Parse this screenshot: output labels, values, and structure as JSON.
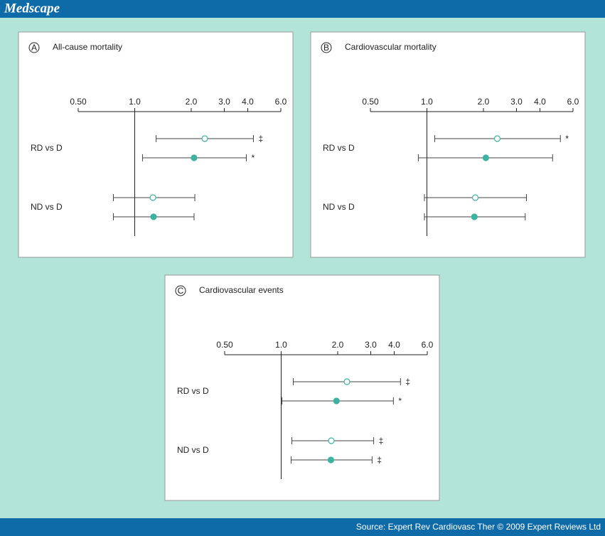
{
  "header": {
    "title": "Medscape"
  },
  "footer": {
    "source": "Source: Expert Rev Cardiovasc Ther © 2009 Expert Reviews Ltd"
  },
  "chart_data": [
    {
      "type": "forest",
      "panel_label": "A",
      "title": "All-cause mortality",
      "xscale": "log",
      "reference": 1,
      "xlim": [
        0.5,
        6
      ],
      "xticks": [
        {
          "value": 0.5,
          "label": "0.50"
        },
        {
          "value": 1,
          "label": "1.0"
        },
        {
          "value": 2,
          "label": "2.0"
        },
        {
          "value": 3,
          "label": "3.0"
        },
        {
          "value": 4,
          "label": "4.0"
        },
        {
          "value": 6,
          "label": "6.0"
        }
      ],
      "categories": [
        "RD vs D",
        "ND vs D"
      ],
      "series": [
        {
          "marker": "open",
          "color": "#3bb3a0",
          "values": [
            2.36,
            1.25
          ],
          "lower": [
            1.3,
            0.77
          ],
          "upper": [
            4.29,
            2.09
          ],
          "annotations": [
            "‡",
            null
          ]
        },
        {
          "marker": "filled",
          "color": "#3bb3a0",
          "values": [
            2.07,
            1.26
          ],
          "lower": [
            1.1,
            0.77
          ],
          "upper": [
            3.93,
            2.07
          ],
          "annotations": [
            "*",
            null
          ]
        }
      ]
    },
    {
      "type": "forest",
      "panel_label": "B",
      "title": "Cardiovascular mortality",
      "xscale": "log",
      "reference": 1,
      "xlim": [
        0.5,
        6
      ],
      "xticks": [
        {
          "value": 0.5,
          "label": "0.50"
        },
        {
          "value": 1,
          "label": "1.0"
        },
        {
          "value": 2,
          "label": "2.0"
        },
        {
          "value": 3,
          "label": "3.0"
        },
        {
          "value": 4,
          "label": "4.0"
        },
        {
          "value": 6,
          "label": "6.0"
        }
      ],
      "categories": [
        "RD vs D",
        "ND vs D"
      ],
      "series": [
        {
          "marker": "open",
          "color": "#3bb3a0",
          "values": [
            2.37,
            1.81
          ],
          "lower": [
            1.1,
            0.97
          ],
          "upper": [
            5.14,
            3.39
          ],
          "annotations": [
            "*",
            null
          ]
        },
        {
          "marker": "filled",
          "color": "#3bb3a0",
          "values": [
            2.06,
            1.79
          ],
          "lower": [
            0.9,
            0.97
          ],
          "upper": [
            4.67,
            3.34
          ],
          "annotations": [
            null,
            null
          ]
        }
      ]
    },
    {
      "type": "forest",
      "panel_label": "C",
      "title": "Cardiovascular events",
      "xscale": "log",
      "reference": 1,
      "xlim": [
        0.5,
        6
      ],
      "xticks": [
        {
          "value": 0.5,
          "label": "0.50"
        },
        {
          "value": 1,
          "label": "1.0"
        },
        {
          "value": 2,
          "label": "2.0"
        },
        {
          "value": 3,
          "label": "3.0"
        },
        {
          "value": 4,
          "label": "4.0"
        },
        {
          "value": 6,
          "label": "6.0"
        }
      ],
      "categories": [
        "RD vs D",
        "ND vs D"
      ],
      "series": [
        {
          "marker": "open",
          "color": "#3bb3a0",
          "values": [
            2.24,
            1.85
          ],
          "lower": [
            1.16,
            1.14
          ],
          "upper": [
            4.32,
            3.11
          ],
          "annotations": [
            "‡",
            "‡"
          ]
        },
        {
          "marker": "filled",
          "color": "#3bb3a0",
          "values": [
            1.97,
            1.84
          ],
          "lower": [
            1.01,
            1.13
          ],
          "upper": [
            3.96,
            3.05
          ],
          "annotations": [
            "*",
            "‡"
          ]
        }
      ]
    }
  ]
}
